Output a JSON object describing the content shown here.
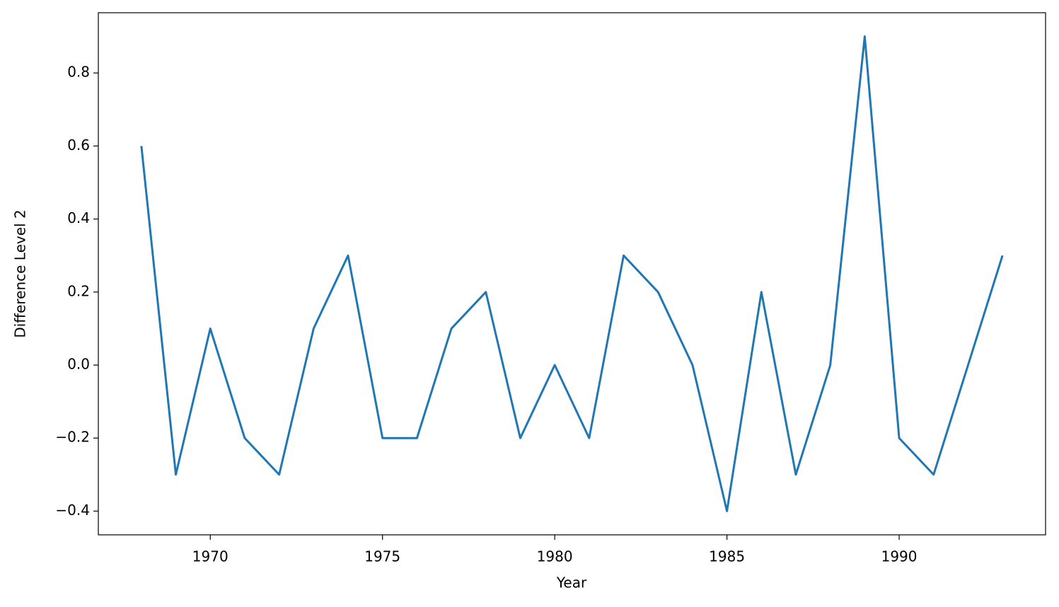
{
  "chart_data": {
    "type": "line",
    "x_label": "Year",
    "y_label": "Difference Level 2",
    "x": [
      1968,
      1969,
      1970,
      1971,
      1972,
      1973,
      1974,
      1975,
      1976,
      1977,
      1978,
      1979,
      1980,
      1981,
      1982,
      1983,
      1984,
      1985,
      1986,
      1987,
      1988,
      1989,
      1990,
      1991,
      1992,
      1993
    ],
    "series": [
      {
        "color": "#1f77b4",
        "values": [
          0.6,
          -0.3,
          0.1,
          -0.2,
          -0.3,
          0.1,
          0.3,
          -0.2,
          -0.2,
          0.1,
          0.2,
          -0.2,
          0.0,
          -0.2,
          0.3,
          0.2,
          0.0,
          -0.4,
          0.2,
          -0.3,
          0.0,
          0.9,
          -0.2,
          -0.3,
          0.0,
          0.3
        ]
      }
    ],
    "xlim": [
      1966.75,
      1994.25
    ],
    "xticks": [
      1970,
      1975,
      1980,
      1985,
      1990
    ],
    "ylim": [
      -0.465,
      0.965
    ],
    "yticks": [
      {
        "value": -0.4,
        "label": "−0.4"
      },
      {
        "value": -0.2,
        "label": "−0.2"
      },
      {
        "value": 0,
        "label": "0.0"
      },
      0.2,
      0.4,
      0.6,
      0.8
    ],
    "grid": false
  }
}
